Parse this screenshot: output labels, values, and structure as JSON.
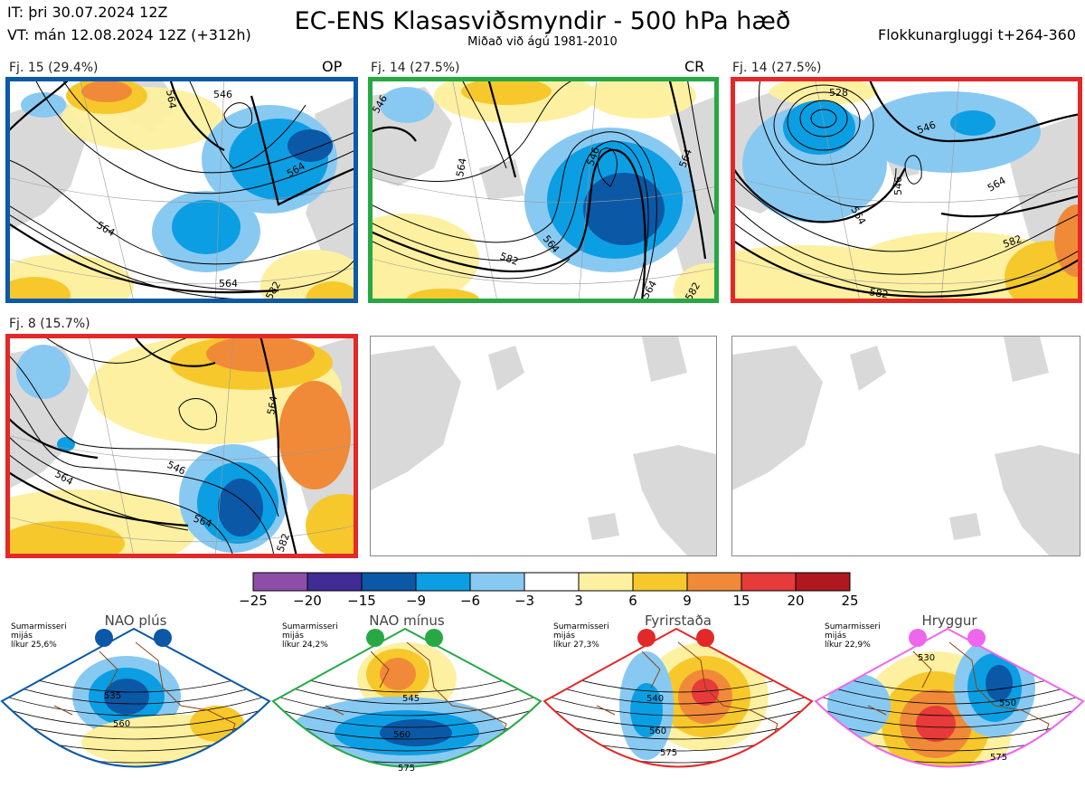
{
  "header": {
    "it": "IT: þri 30.07.2024 12Z",
    "vt": "VT: mán 12.08.2024 12Z  (+312h)",
    "title": "EC-ENS Klasasviðsmyndir - 500 hPa hæð",
    "subtitle": "Miðað við ágú 1981-2010",
    "window": "Flokkunargluggi t+264-360"
  },
  "panels": [
    {
      "label": "Fj. 15 (29.4%)",
      "tag": "OP",
      "frame_color": "#0a5aa8",
      "contours": [
        "564",
        "546",
        "564",
        "564",
        "564",
        "582"
      ]
    },
    {
      "label": "Fj. 14 (27.5%)",
      "tag": "CR",
      "frame_color": "#27a844",
      "contours": [
        "546",
        "564",
        "564",
        "564",
        "546",
        "582",
        "564",
        "582"
      ]
    },
    {
      "label": "Fj. 14 (27.5%)",
      "tag": "",
      "frame_color": "#e32828",
      "contours": [
        "528",
        "546",
        "564",
        "546",
        "564",
        "582",
        "582"
      ]
    },
    {
      "label": "Fj. 8 (15.7%)",
      "tag": "",
      "frame_color": "#e32828",
      "contours": [
        "546",
        "564",
        "564",
        "546",
        "564",
        "582"
      ]
    }
  ],
  "colorbar": {
    "colors": [
      "#8e4ea8",
      "#402c94",
      "#0b58a6",
      "#0c9ee2",
      "#88c9f2",
      "#ffffff",
      "#fdf0a0",
      "#f7c82c",
      "#f08a38",
      "#e73a3a",
      "#b01820"
    ],
    "ticks": [
      "−25",
      "−20",
      "−15",
      "−9",
      "−6",
      "−3",
      "3",
      "6",
      "9",
      "15",
      "20",
      "25"
    ]
  },
  "regimes": [
    {
      "name": "NAO plús",
      "info": "Sumarmisseri\nmijás\nlíkur 25,6%",
      "color": "#0b58a6",
      "contours": [
        "535",
        "560"
      ]
    },
    {
      "name": "NAO mínus",
      "info": "Sumarmisseri\nmijás\nlíkur 24,2%",
      "color": "#27a844",
      "contours": [
        "545",
        "560",
        "575"
      ]
    },
    {
      "name": "Fyrirstaða",
      "info": "Sumarmisseri\nmijás\nlíkur 27,3%",
      "color": "#e32828",
      "contours": [
        "540",
        "560",
        "575"
      ]
    },
    {
      "name": "Hryggur",
      "info": "Sumarmisseri\nmijás\nlíkur 22,9%",
      "color": "#ee66ee",
      "contours": [
        "530",
        "550",
        "575"
      ]
    }
  ]
}
